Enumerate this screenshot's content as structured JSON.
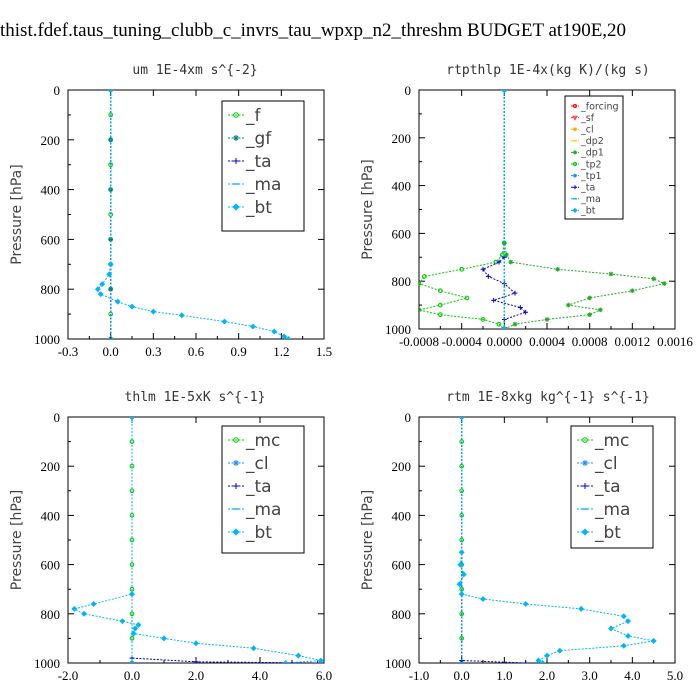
{
  "page_title": "thist.fdef.taus_tuning_clubb_c_invrs_tau_wpxp_n2_threshm  BUDGET at190E,20",
  "chart_data": [
    {
      "type": "line",
      "title": "um  1E-4xm s^{-2}",
      "ylabel": "Pressure [hPa]",
      "xlim": [
        -0.3,
        1.5
      ],
      "ylim": [
        1000,
        0
      ],
      "xticks": [
        "-0.3",
        "0.0",
        "0.3",
        "0.6",
        "0.9",
        "1.2",
        "1.5"
      ],
      "yticks": [
        "0",
        "200",
        "400",
        "600",
        "800",
        "1000"
      ],
      "legend_position": "top-right",
      "series": [
        {
          "name": "_f",
          "color": "#00cc00",
          "marker": "circle",
          "points": [
            [
              0,
              0
            ],
            [
              0,
              100
            ],
            [
              0,
              200
            ],
            [
              0,
              300
            ],
            [
              0,
              400
            ],
            [
              0,
              500
            ],
            [
              0,
              600
            ],
            [
              0,
              700
            ],
            [
              0,
              800
            ],
            [
              0,
              900
            ],
            [
              0,
              1000
            ]
          ]
        },
        {
          "name": "_gf",
          "color": "#008080",
          "marker": "star",
          "points": [
            [
              0,
              0
            ],
            [
              0,
              200
            ],
            [
              0,
              400
            ],
            [
              0,
              600
            ],
            [
              0,
              800
            ],
            [
              0,
              1000
            ]
          ]
        },
        {
          "name": "_ta",
          "color": "#0000cc",
          "marker": "plus",
          "points": [
            [
              0,
              0
            ],
            [
              0,
              1000
            ]
          ]
        },
        {
          "name": "_ma",
          "color": "#00aaff",
          "marker": "dash",
          "points": [
            [
              0,
              0
            ],
            [
              0,
              1000
            ]
          ]
        },
        {
          "name": "_bt",
          "color": "#00b4ff",
          "marker": "diamond",
          "points": [
            [
              0,
              0
            ],
            [
              0,
              700
            ],
            [
              -0.01,
              740
            ],
            [
              -0.06,
              780
            ],
            [
              -0.09,
              800
            ],
            [
              -0.07,
              820
            ],
            [
              0.05,
              850
            ],
            [
              0.15,
              870
            ],
            [
              0.3,
              890
            ],
            [
              0.5,
              905
            ],
            [
              0.8,
              930
            ],
            [
              1.0,
              950
            ],
            [
              1.15,
              970
            ],
            [
              1.22,
              990
            ],
            [
              1.25,
              1000
            ]
          ]
        }
      ]
    },
    {
      "type": "line",
      "title": "rtpthlp  1E-4x(kg K)/(kg s)",
      "ylabel": "Pressure [hPa]",
      "xlim": [
        -0.0008,
        0.0016
      ],
      "ylim": [
        1000,
        0
      ],
      "xticks": [
        "-0.0008",
        "-0.0004",
        "0.0000",
        "0.0004",
        "0.0008",
        "0.0012",
        "0.0016"
      ],
      "yticks": [
        "0",
        "200",
        "400",
        "600",
        "800",
        "1000"
      ],
      "legend_position": "top-right",
      "series": [
        {
          "name": "_forcing",
          "color": "#ff0000",
          "marker": "circle",
          "points": [
            [
              0,
              0
            ],
            [
              0,
              1000
            ]
          ]
        },
        {
          "name": "_sf",
          "color": "#ff3333",
          "marker": "triangle",
          "points": [
            [
              0,
              0
            ],
            [
              0,
              1000
            ]
          ]
        },
        {
          "name": "_cl",
          "color": "#ffaa00",
          "marker": "star",
          "points": [
            [
              0,
              0
            ],
            [
              0,
              1000
            ]
          ]
        },
        {
          "name": "_dp2",
          "color": "#ffcc00",
          "marker": "dash",
          "points": [
            [
              0,
              0
            ],
            [
              0,
              1000
            ]
          ]
        },
        {
          "name": "_dp1",
          "color": "#22aa22",
          "marker": "star",
          "points": [
            [
              0,
              0
            ],
            [
              0,
              640
            ],
            [
              2e-05,
              690
            ],
            [
              6e-05,
              720
            ],
            [
              0.0005,
              750
            ],
            [
              0.001,
              770
            ],
            [
              0.0014,
              790
            ],
            [
              0.0015,
              810
            ],
            [
              0.0012,
              840
            ],
            [
              0.0008,
              870
            ],
            [
              0.0006,
              900
            ],
            [
              0.0009,
              920
            ],
            [
              0.0008,
              940
            ],
            [
              0.0004,
              960
            ],
            [
              0.0001,
              980
            ],
            [
              0,
              1000
            ]
          ]
        },
        {
          "name": "_tp2",
          "color": "#00cc00",
          "marker": "circle",
          "points": [
            [
              0,
              0
            ],
            [
              0,
              640
            ],
            [
              -2e-05,
              690
            ],
            [
              -8e-05,
              720
            ],
            [
              -0.0004,
              750
            ],
            [
              -0.00075,
              780
            ],
            [
              -0.0008,
              810
            ],
            [
              -0.0006,
              840
            ],
            [
              -0.00035,
              870
            ],
            [
              -0.0006,
              900
            ],
            [
              -0.0008,
              920
            ],
            [
              -0.0006,
              940
            ],
            [
              -0.0002,
              960
            ],
            [
              -5e-05,
              980
            ],
            [
              0,
              1000
            ]
          ]
        },
        {
          "name": "_tp1",
          "color": "#1e90ff",
          "marker": "star",
          "points": [
            [
              0,
              0
            ],
            [
              0,
              1000
            ]
          ]
        },
        {
          "name": "_ta",
          "color": "#0000cc",
          "marker": "plus",
          "points": [
            [
              0,
              0
            ],
            [
              0,
              700
            ],
            [
              -5e-05,
              720
            ],
            [
              -0.0002,
              750
            ],
            [
              -0.00015,
              780
            ],
            [
              0,
              810
            ],
            [
              0.0001,
              850
            ],
            [
              -0.0001,
              880
            ],
            [
              0.00015,
              910
            ],
            [
              0.0002,
              930
            ],
            [
              0,
              960
            ],
            [
              0,
              1000
            ]
          ]
        },
        {
          "name": "_ma",
          "color": "#00aaff",
          "marker": "dash",
          "points": [
            [
              0,
              0
            ],
            [
              0,
              1000
            ]
          ]
        },
        {
          "name": "_bt",
          "color": "#00b4ff",
          "marker": "diamond",
          "points": [
            [
              0,
              0
            ],
            [
              0,
              1000
            ]
          ]
        }
      ]
    },
    {
      "type": "line",
      "title": "thlm  1E-5xK s^{-1}",
      "ylabel": "Pressure [hPa]",
      "xlim": [
        -2.0,
        6.0
      ],
      "ylim": [
        1000,
        0
      ],
      "xticks": [
        "-2.0",
        "0.0",
        "2.0",
        "4.0",
        "6.0"
      ],
      "yticks": [
        "0",
        "200",
        "400",
        "600",
        "800",
        "1000"
      ],
      "legend_position": "top-right",
      "series": [
        {
          "name": "_mc",
          "color": "#00cc00",
          "marker": "circle",
          "points": [
            [
              0,
              0
            ],
            [
              0,
              100
            ],
            [
              0,
              200
            ],
            [
              0,
              300
            ],
            [
              0,
              400
            ],
            [
              0,
              500
            ],
            [
              0,
              600
            ],
            [
              0,
              700
            ],
            [
              0,
              800
            ],
            [
              0,
              900
            ],
            [
              0,
              1000
            ]
          ]
        },
        {
          "name": "_cl",
          "color": "#1e90ff",
          "marker": "star",
          "points": [
            [
              0,
              0
            ],
            [
              0,
              1000
            ]
          ]
        },
        {
          "name": "_ta",
          "color": "#0000cc",
          "marker": "plus",
          "points": [
            [
              0,
              0
            ],
            [
              0,
              980
            ],
            [
              2.0,
              995
            ],
            [
              5.8,
              1000
            ]
          ]
        },
        {
          "name": "_ma",
          "color": "#00aaff",
          "marker": "dash",
          "points": [
            [
              0,
              0
            ],
            [
              0,
              1000
            ]
          ]
        },
        {
          "name": "_bt",
          "color": "#00b4ff",
          "marker": "diamond",
          "points": [
            [
              0,
              0
            ],
            [
              0,
              720
            ],
            [
              -1.2,
              760
            ],
            [
              -1.8,
              780
            ],
            [
              -1.5,
              800
            ],
            [
              -0.3,
              830
            ],
            [
              0.2,
              845
            ],
            [
              0.1,
              860
            ],
            [
              0.05,
              880
            ],
            [
              1.0,
              900
            ],
            [
              2.0,
              920
            ],
            [
              3.8,
              940
            ],
            [
              5.2,
              970
            ],
            [
              5.9,
              990
            ],
            [
              4.8,
              1000
            ]
          ]
        }
      ]
    },
    {
      "type": "line",
      "title": "rtm  1E-8xkg kg^{-1} s^{-1}",
      "ylabel": "Pressure [hPa]",
      "xlim": [
        -1.0,
        5.0
      ],
      "ylim": [
        1000,
        0
      ],
      "xticks": [
        "-1.0",
        "0.0",
        "1.0",
        "2.0",
        "3.0",
        "4.0",
        "5.0"
      ],
      "yticks": [
        "0",
        "200",
        "400",
        "600",
        "800",
        "1000"
      ],
      "legend_position": "top-right",
      "series": [
        {
          "name": "_mc",
          "color": "#00cc00",
          "marker": "circle",
          "points": [
            [
              0,
              0
            ],
            [
              0,
              100
            ],
            [
              0,
              200
            ],
            [
              0,
              300
            ],
            [
              0,
              400
            ],
            [
              0,
              500
            ],
            [
              0,
              600
            ],
            [
              0,
              700
            ],
            [
              0,
              800
            ],
            [
              0,
              900
            ],
            [
              0,
              1000
            ]
          ]
        },
        {
          "name": "_cl",
          "color": "#1e90ff",
          "marker": "star",
          "points": [
            [
              0,
              0
            ],
            [
              0,
              1000
            ]
          ]
        },
        {
          "name": "_ta",
          "color": "#0000cc",
          "marker": "plus",
          "points": [
            [
              0,
              0
            ],
            [
              0,
              990
            ],
            [
              1.5,
              1000
            ]
          ]
        },
        {
          "name": "_ma",
          "color": "#00aaff",
          "marker": "dash",
          "points": [
            [
              0,
              0
            ],
            [
              0,
              1000
            ]
          ]
        },
        {
          "name": "_bt",
          "color": "#00b4ff",
          "marker": "diamond",
          "points": [
            [
              0,
              0
            ],
            [
              0,
              550
            ],
            [
              -0.03,
              600
            ],
            [
              0.05,
              640
            ],
            [
              -0.05,
              680
            ],
            [
              0,
              720
            ],
            [
              0.5,
              740
            ],
            [
              1.5,
              760
            ],
            [
              2.8,
              780
            ],
            [
              3.8,
              810
            ],
            [
              3.9,
              830
            ],
            [
              3.5,
              860
            ],
            [
              3.9,
              890
            ],
            [
              4.5,
              910
            ],
            [
              3.8,
              930
            ],
            [
              2.3,
              950
            ],
            [
              2.0,
              970
            ],
            [
              1.8,
              990
            ],
            [
              1.9,
              1000
            ]
          ]
        }
      ]
    }
  ]
}
